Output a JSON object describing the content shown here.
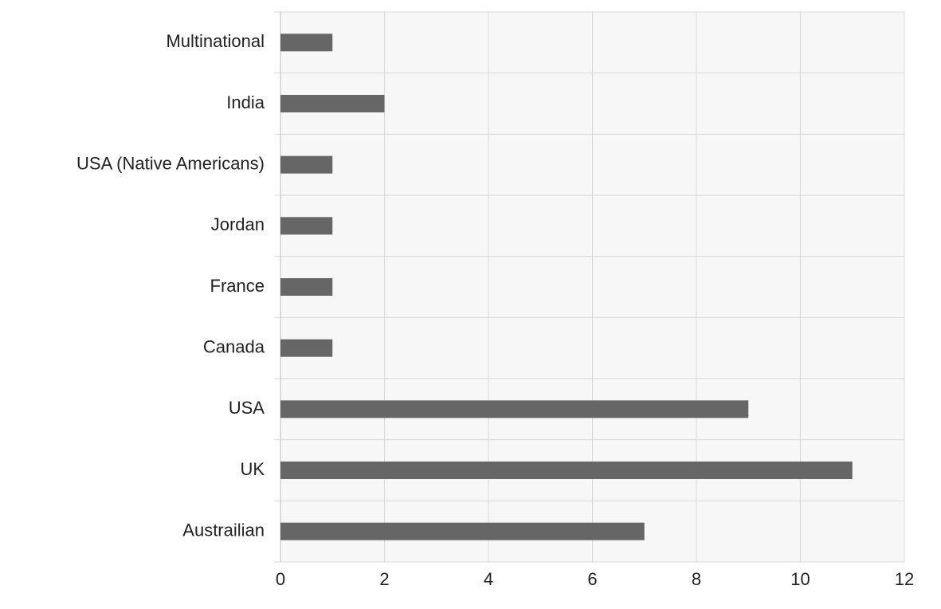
{
  "chart_data": {
    "type": "bar",
    "orientation": "horizontal",
    "categories": [
      "Multinational",
      "India",
      "USA (Native Americans)",
      "Jordan",
      "France",
      "Canada",
      "USA",
      "UK",
      "Austrailian"
    ],
    "values": [
      1,
      2,
      1,
      1,
      1,
      1,
      9,
      11,
      7
    ],
    "color": "#666666",
    "xlim": [
      0,
      12
    ],
    "xticks": [
      0,
      2,
      4,
      6,
      8,
      10,
      12
    ],
    "grid": true
  }
}
